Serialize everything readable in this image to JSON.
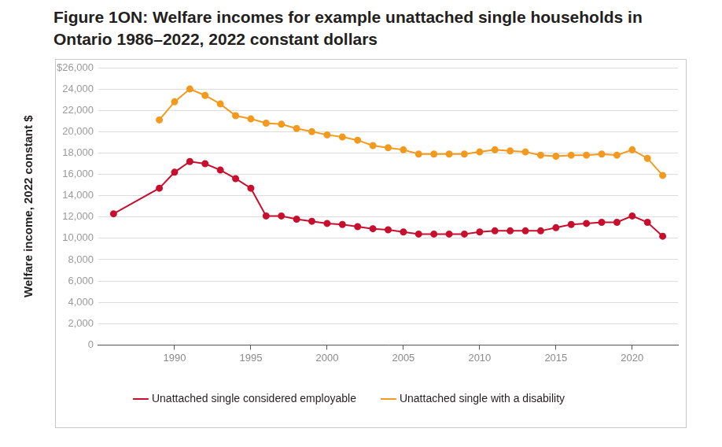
{
  "chart_data": {
    "type": "line",
    "title": "Figure 1ON: Welfare incomes for example unattached single households in Ontario 1986–2022, 2022 constant dollars",
    "y_label": "Welfare income, 2022 constant $",
    "x": [
      1986,
      1989,
      1990,
      1991,
      1992,
      1993,
      1994,
      1995,
      1996,
      1997,
      1998,
      1999,
      2000,
      2001,
      2002,
      2003,
      2004,
      2005,
      2006,
      2007,
      2008,
      2009,
      2010,
      2011,
      2012,
      2013,
      2014,
      2015,
      2016,
      2017,
      2018,
      2019,
      2020,
      2021,
      2022
    ],
    "series": [
      {
        "name": "Unattached single considered employable",
        "color": "#c8102e",
        "marker": "circle",
        "line_style": "solid",
        "values": [
          12300,
          14700,
          16200,
          17200,
          17000,
          16400,
          15600,
          14700,
          12100,
          12100,
          11800,
          11600,
          11400,
          11300,
          11100,
          10900,
          10800,
          10600,
          10400,
          10400,
          10400,
          10400,
          10600,
          10700,
          10700,
          10700,
          10700,
          11000,
          11300,
          11400,
          11500,
          11500,
          12100,
          11500,
          10200
        ]
      },
      {
        "name": "Unattached single with a disability",
        "color": "#f39a1e",
        "marker": "circle",
        "line_style": "solid",
        "values": [
          null,
          21100,
          22800,
          24000,
          23400,
          22600,
          21500,
          21200,
          20800,
          20700,
          20300,
          20000,
          19700,
          19500,
          19200,
          18700,
          18500,
          18300,
          17900,
          17900,
          17900,
          17900,
          18100,
          18300,
          18200,
          18100,
          17800,
          17700,
          17800,
          17800,
          17900,
          17800,
          18300,
          17500,
          15900
        ]
      }
    ],
    "xlim": [
      1985,
      2023
    ],
    "xticks": [
      1990,
      1995,
      2000,
      2005,
      2010,
      2015,
      2020
    ],
    "ylim": [
      0,
      26000
    ],
    "yticks": [
      0,
      {
        "value": 2000,
        "label": "2,000"
      },
      {
        "value": 4000,
        "label": "4,000"
      },
      {
        "value": 6000,
        "label": "6,000"
      },
      {
        "value": 8000,
        "label": "8,000"
      },
      {
        "value": 10000,
        "label": "10,000"
      },
      {
        "value": 12000,
        "label": "12,000"
      },
      {
        "value": 14000,
        "label": "14,000"
      },
      {
        "value": 16000,
        "label": "16,000"
      },
      {
        "value": 18000,
        "label": "18,000"
      },
      {
        "value": 20000,
        "label": "20,000"
      },
      {
        "value": 22000,
        "label": "22,000"
      },
      {
        "value": 24000,
        "label": "24,000"
      },
      {
        "value": 26000,
        "label": "$26,000"
      }
    ],
    "grid": true,
    "legend": "bottom"
  }
}
